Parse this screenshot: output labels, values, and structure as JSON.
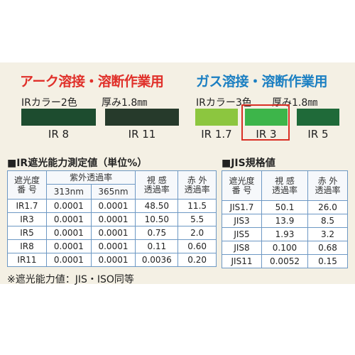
{
  "header": {
    "left": {
      "title": "アーク溶接・溶断作業用",
      "colors": "IRカラー2色",
      "thickness": "厚み1.8㎜"
    },
    "right": {
      "title": "ガス溶接・溶断作業用",
      "colors": "IRカラー3色",
      "thickness": "厚み1.8㎜"
    }
  },
  "swatches": [
    {
      "label": "IR 8",
      "color": "#1d4c2f"
    },
    {
      "label": "IR 11",
      "color": "#263a2b"
    },
    {
      "label": "IR 1.7",
      "color": "#8cc63f"
    },
    {
      "label": "IR 3",
      "color": "#3db54a"
    },
    {
      "label": "IR 5",
      "color": "#1f6a39"
    }
  ],
  "table1": {
    "title": "■IR遮光能力測定値（単位%）",
    "header": {
      "shade": [
        "遮光度",
        "番 号"
      ],
      "uv": "紫外透過率",
      "uv_sub": [
        "313nm",
        "365nm"
      ],
      "visible": [
        "視 感",
        "透過率"
      ],
      "ir": [
        "赤 外",
        "透過率"
      ]
    },
    "rows": [
      [
        "IR1.7",
        "0.0001",
        "0.0001",
        "48.50",
        "11.5"
      ],
      [
        "IR3",
        "0.0001",
        "0.0001",
        "10.50",
        "5.5"
      ],
      [
        "IR5",
        "0.0001",
        "0.0001",
        "0.75",
        "2.0"
      ],
      [
        "IR8",
        "0.0001",
        "0.0001",
        "0.11",
        "0.60"
      ],
      [
        "IR11",
        "0.0001",
        "0.0001",
        "0.0036",
        "0.20"
      ]
    ]
  },
  "table2": {
    "title": "■JIS規格値",
    "header": {
      "shade": [
        "遮光度",
        "番 号"
      ],
      "visible": [
        "視 感",
        "透過率"
      ],
      "ir": [
        "赤 外",
        "透過率"
      ]
    },
    "rows": [
      [
        "JIS1.7",
        "50.1",
        "26.0"
      ],
      [
        "JIS3",
        "13.9",
        "8.5"
      ],
      [
        "JIS5",
        "1.93",
        "3.2"
      ],
      [
        "JIS8",
        "0.100",
        "0.68"
      ],
      [
        "JIS11",
        "0.0052",
        "0.15"
      ]
    ]
  },
  "footnote": "※遮光能力値：JIS・ISO同等"
}
